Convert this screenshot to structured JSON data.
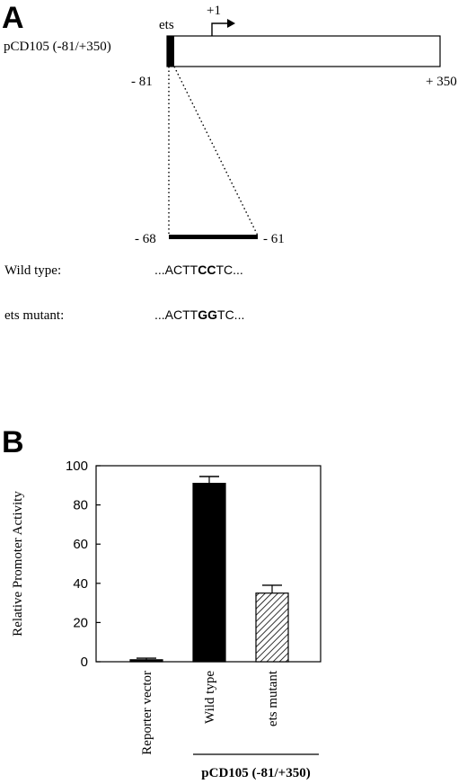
{
  "panel_a": {
    "letter": "A",
    "construct_label": "pCD105 (-81/+350)",
    "ets_label": "ets",
    "tss_label": "+1",
    "start_coord": "- 81",
    "end_coord": "+ 350",
    "zoom_start": "- 68",
    "zoom_end": "- 61",
    "wild_type_label": "Wild type:",
    "wild_type_seq": {
      "prefix": "...ACTT",
      "bold": "CC",
      "suffix": "TC..."
    },
    "mutant_label": "ets mutant:",
    "mutant_seq": {
      "prefix": "...ACTT",
      "bold": "GG",
      "suffix": "TC..."
    }
  },
  "panel_b": {
    "letter": "B",
    "group_label": "pCD105 (-81/+350)"
  },
  "chart_data": {
    "type": "bar",
    "categories": [
      "Reporter vector",
      "Wild type",
      "ets  mutant"
    ],
    "values": [
      1,
      91,
      35
    ],
    "errors": [
      0.8,
      3.5,
      4
    ],
    "fills": [
      "solid",
      "solid",
      "hatched"
    ],
    "colors": [
      "#000000",
      "#000000",
      "#000000"
    ],
    "ylabel": "Relative Promoter Activity",
    "ylim": [
      0,
      100
    ],
    "yticks": [
      0,
      20,
      40,
      60,
      80,
      100
    ],
    "grid": false
  }
}
